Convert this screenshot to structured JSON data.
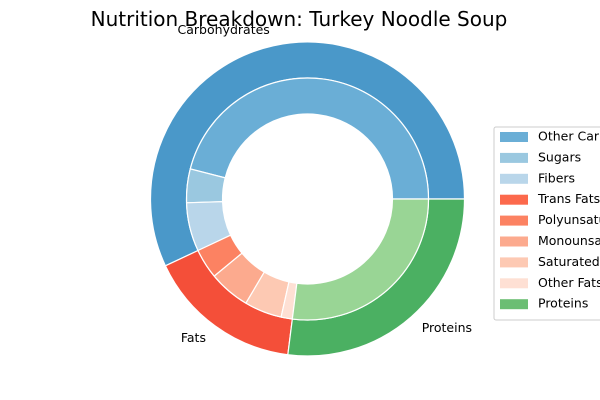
{
  "chart_data": {
    "type": "donut",
    "title": "Nutrition Breakdown:  Turkey Noodle Soup",
    "outer_ring": [
      {
        "name": "Carbohydrates",
        "value": 57.0,
        "color": "#4a98c9"
      },
      {
        "name": "Fats",
        "value": 16.0,
        "color": "#f44f39"
      },
      {
        "name": "Proteins",
        "value": 27.0,
        "color": "#4bb062"
      }
    ],
    "inner_ring": [
      {
        "name": "Other Carbohydrates",
        "value": 46.0,
        "color": "#6aaed6"
      },
      {
        "name": "Sugars",
        "value": 4.5,
        "color": "#9ac8e0"
      },
      {
        "name": "Fibers",
        "value": 6.5,
        "color": "#b9d6ea"
      },
      {
        "name": "Trans Fats",
        "value": 0.0,
        "color": "#fc694c"
      },
      {
        "name": "Polyunsaturated Fats",
        "value": 4.0,
        "color": "#fc8262"
      },
      {
        "name": "Monounsaturated Fats",
        "value": 5.5,
        "color": "#fcaa8e"
      },
      {
        "name": "Saturated Fats",
        "value": 5.0,
        "color": "#fdc9b3"
      },
      {
        "name": "Other Fats",
        "value": 1.5,
        "color": "#fee0d4"
      },
      {
        "name": "Proteins",
        "value": 27.0,
        "color": "#99d595"
      }
    ],
    "legend": {
      "placement": "center-right",
      "entries": [
        {
          "label": "Other Carbohydrates",
          "color": "#6aaed6"
        },
        {
          "label": "Sugars",
          "color": "#9ac8e0"
        },
        {
          "label": "Fibers",
          "color": "#b9d6ea"
        },
        {
          "label": "Trans Fats",
          "color": "#fc694c"
        },
        {
          "label": "Polyunsaturated Fats",
          "color": "#fc8262"
        },
        {
          "label": "Monounsaturated Fats",
          "color": "#fcaa8e"
        },
        {
          "label": "Saturated Fats",
          "color": "#fdc9b3"
        },
        {
          "label": "Other Fats",
          "color": "#fee0d4"
        },
        {
          "label": "Proteins",
          "color": "#6bbe73"
        }
      ]
    },
    "start_angle_deg": 0,
    "direction": "counterclockwise"
  }
}
